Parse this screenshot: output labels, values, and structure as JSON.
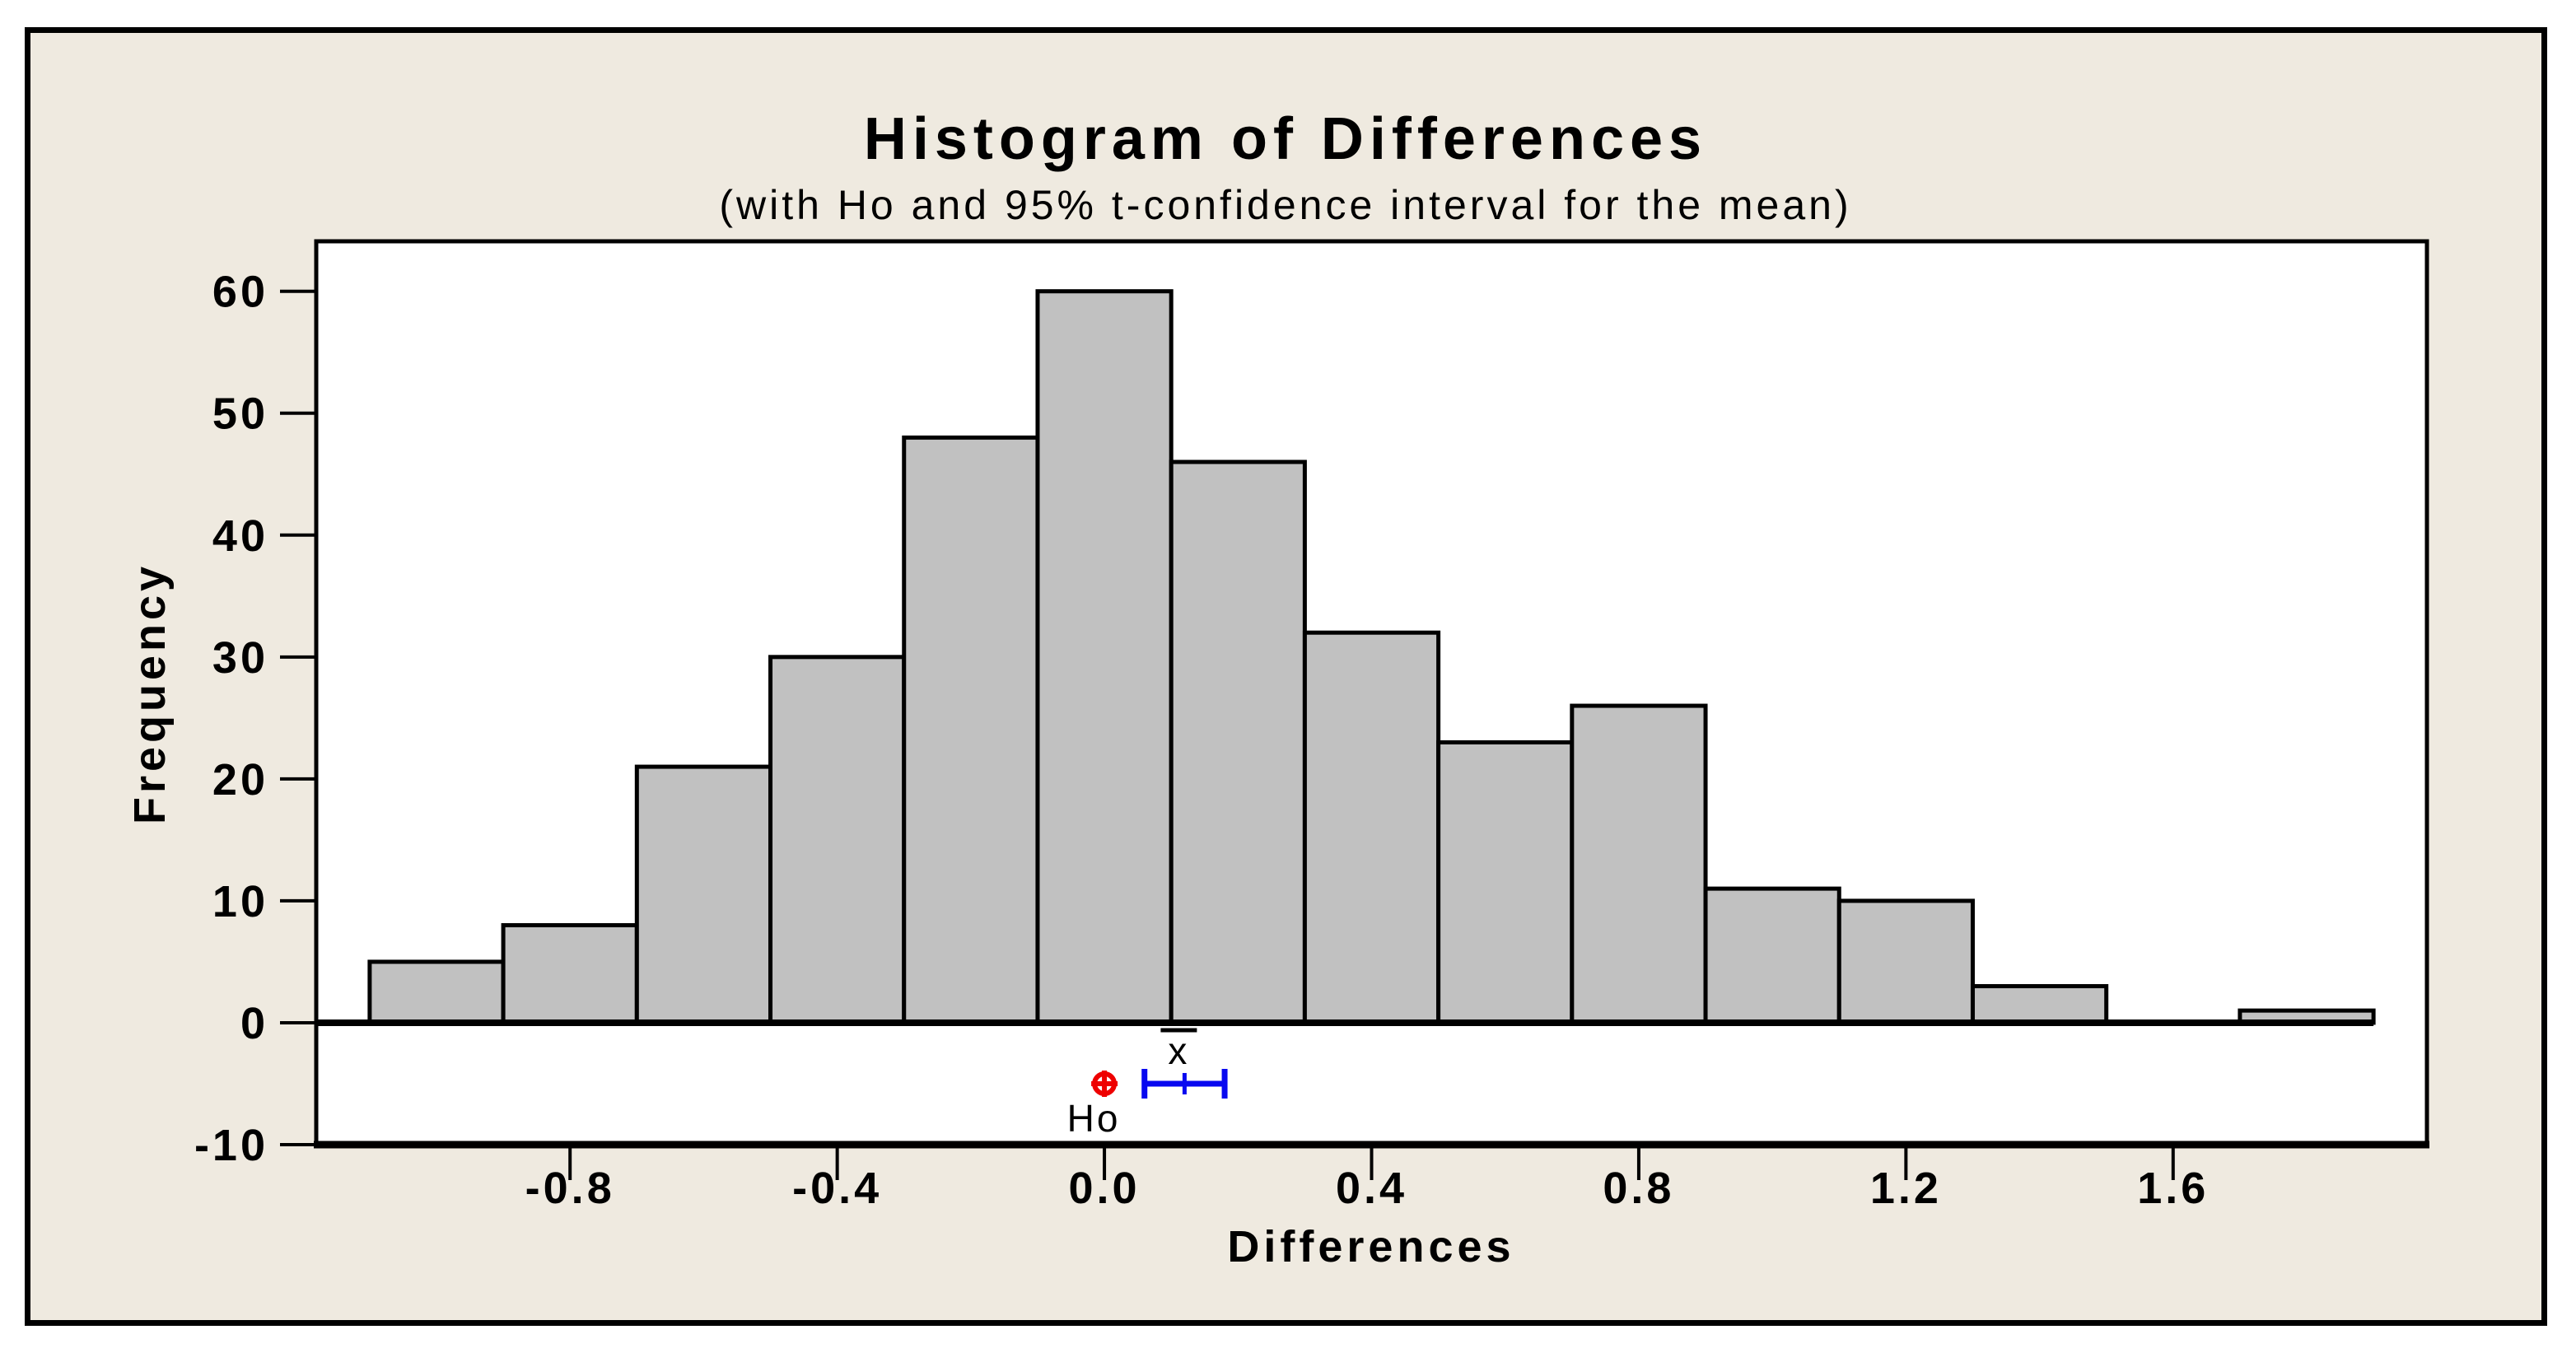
{
  "window": {
    "background_color": "#EFEAE0",
    "outer_background": "#FFFFFF",
    "frame_color": "#000000"
  },
  "chart_data": {
    "type": "bar",
    "title": "Histogram of Differences",
    "subtitle": "(with Ho and 95% t-confidence interval for the mean)",
    "xlabel": "Differences",
    "ylabel": "Frequency",
    "bin_width": 0.2,
    "bin_centers": [
      -1.0,
      -0.8,
      -0.6,
      -0.4,
      -0.2,
      0.0,
      0.2,
      0.4,
      0.6,
      0.8,
      1.0,
      1.2,
      1.4,
      1.6,
      1.8
    ],
    "values": [
      5,
      8,
      21,
      30,
      48,
      60,
      46,
      32,
      23,
      26,
      11,
      10,
      3,
      0,
      1
    ],
    "x_ticks": [
      -0.8,
      -0.4,
      0.0,
      0.4,
      0.8,
      1.2,
      1.6
    ],
    "x_tick_labels": [
      "-0.8",
      "-0.4",
      "0.0",
      "0.4",
      "0.8",
      "1.2",
      "1.6"
    ],
    "y_ticks": [
      60,
      50,
      40,
      30,
      20,
      10,
      0,
      -10
    ],
    "y_tick_labels": [
      "60",
      "50",
      "40",
      "30",
      "20",
      "10",
      "0",
      "-10"
    ],
    "xlim": [
      -1.18,
      1.98
    ],
    "ylim": [
      -10,
      64.1
    ],
    "grid": false,
    "legend": "none",
    "plot_background": "#FFFFFF",
    "bar_fill": "#C1C1C1",
    "bar_stroke": "#000000",
    "annotations": {
      "h0_marker": {
        "label": "Ho",
        "x": 0.0,
        "y": -5,
        "color": "#EE0000",
        "symbol": "circle-plus"
      },
      "confidence_interval": {
        "label": "x̄",
        "lower": 0.06,
        "mean": 0.12,
        "upper": 0.18,
        "y": -5,
        "color": "#0808F0",
        "description": "95% t-confidence interval for the mean"
      }
    }
  }
}
